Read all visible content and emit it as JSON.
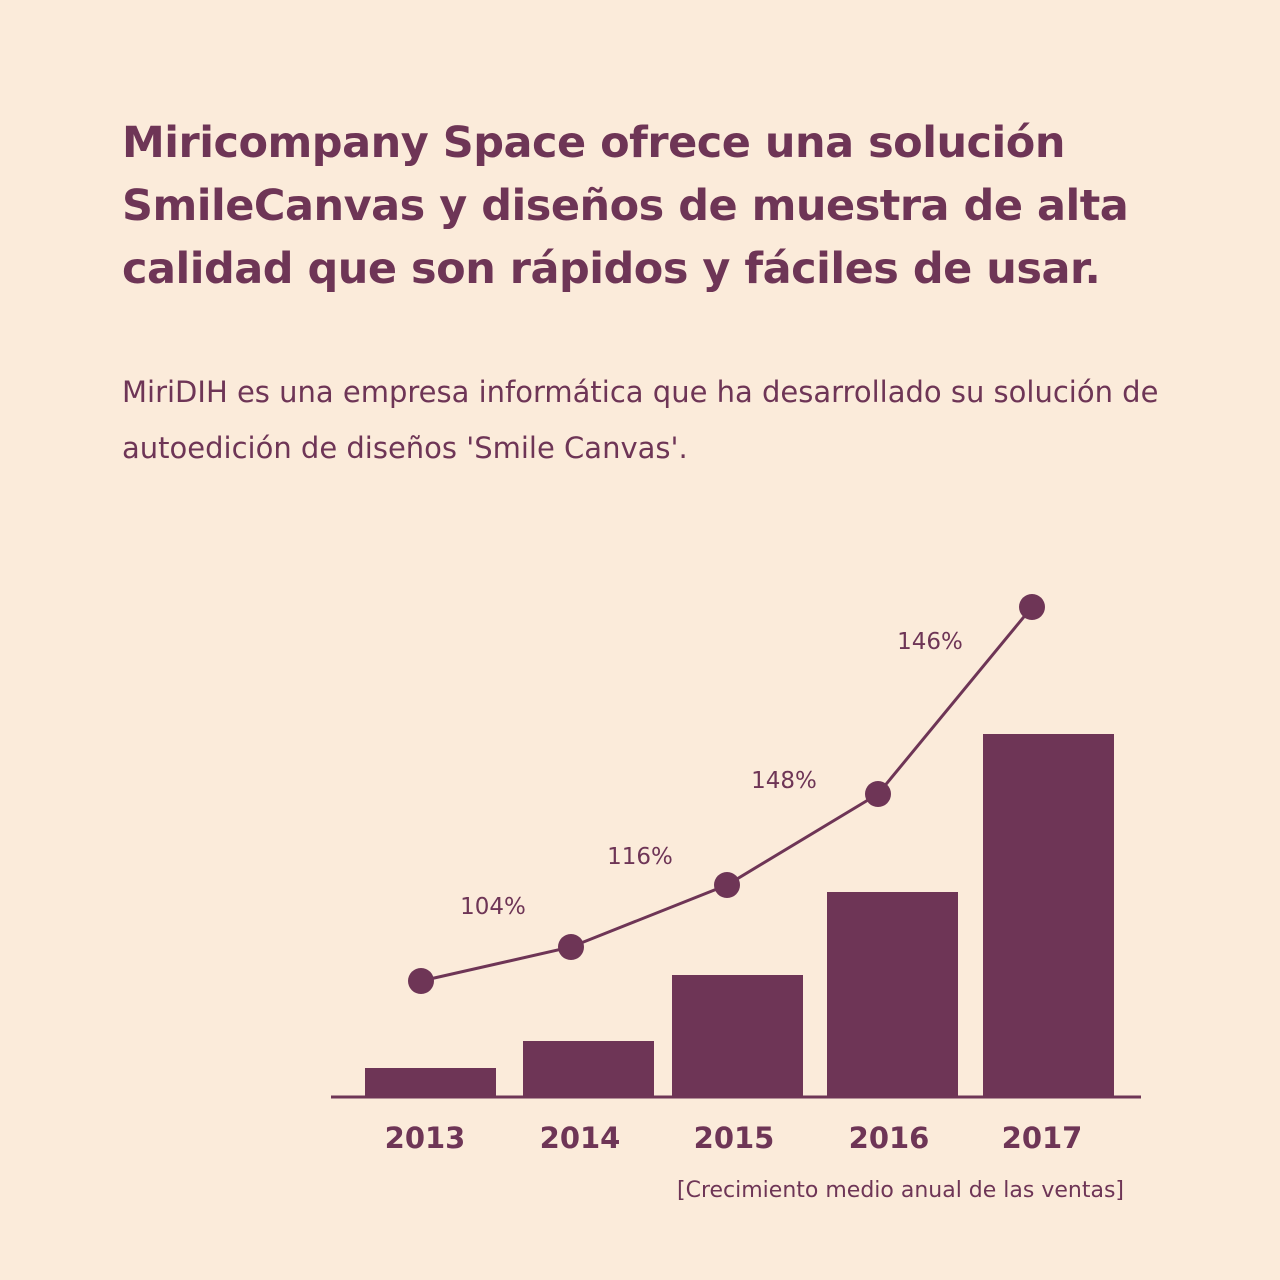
{
  "header": {
    "title": "Miricompany Space ofrece una solución SmileCanvas y diseños de muestra de alta calidad que son rápidos y fáciles de usar.",
    "subtitle": "MiriDIH es una empresa informática que ha desarrollado su solución de autoedición de diseños 'Smile Canvas'."
  },
  "colors": {
    "background": "#FBEBDA",
    "accent": "#6E3556"
  },
  "chart_data": {
    "type": "bar",
    "categories": [
      "2013",
      "2014",
      "2015",
      "2016",
      "2017"
    ],
    "series": [
      {
        "type": "bar",
        "values": [
          5.6,
          11,
          24.2,
          40.8,
          72.4
        ]
      },
      {
        "type": "line",
        "values": [
          23,
          29.8,
          42.2,
          60.4,
          97.8
        ]
      }
    ],
    "segment_labels": [
      "104%",
      "116%",
      "148%",
      "146%"
    ],
    "ylim": [
      0,
      100
    ],
    "y_axis_shown": false,
    "grid": false,
    "caption": "[Crecimiento medio anual de las ventas]"
  }
}
